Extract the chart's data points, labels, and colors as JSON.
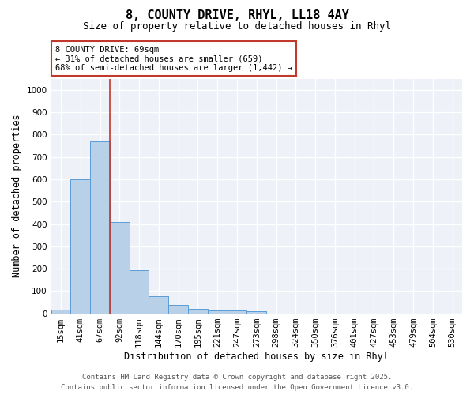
{
  "title": "8, COUNTY DRIVE, RHYL, LL18 4AY",
  "subtitle": "Size of property relative to detached houses in Rhyl",
  "xlabel": "Distribution of detached houses by size in Rhyl",
  "ylabel": "Number of detached properties",
  "bins": [
    "15sqm",
    "41sqm",
    "67sqm",
    "92sqm",
    "118sqm",
    "144sqm",
    "170sqm",
    "195sqm",
    "221sqm",
    "247sqm",
    "273sqm",
    "298sqm",
    "324sqm",
    "350sqm",
    "376sqm",
    "401sqm",
    "427sqm",
    "453sqm",
    "479sqm",
    "504sqm",
    "530sqm"
  ],
  "counts": [
    15,
    600,
    770,
    410,
    193,
    75,
    38,
    18,
    13,
    13,
    8,
    0,
    0,
    0,
    0,
    0,
    0,
    0,
    0,
    0,
    0
  ],
  "bar_color": "#b8d0e8",
  "bar_edge_color": "#5b9bd5",
  "vline_color": "#c0392b",
  "annotation_text": "8 COUNTY DRIVE: 69sqm\n← 31% of detached houses are smaller (659)\n68% of semi-detached houses are larger (1,442) →",
  "annotation_box_color": "#ffffff",
  "annotation_box_edge": "#c0392b",
  "ylim": [
    0,
    1050
  ],
  "yticks": [
    0,
    100,
    200,
    300,
    400,
    500,
    600,
    700,
    800,
    900,
    1000
  ],
  "bg_color": "#eef2f8",
  "footer": "Contains HM Land Registry data © Crown copyright and database right 2025.\nContains public sector information licensed under the Open Government Licence v3.0.",
  "title_fontsize": 11,
  "subtitle_fontsize": 9,
  "xlabel_fontsize": 8.5,
  "ylabel_fontsize": 8.5,
  "tick_fontsize": 7.5,
  "footer_fontsize": 6.5,
  "annotation_fontsize": 7.5
}
